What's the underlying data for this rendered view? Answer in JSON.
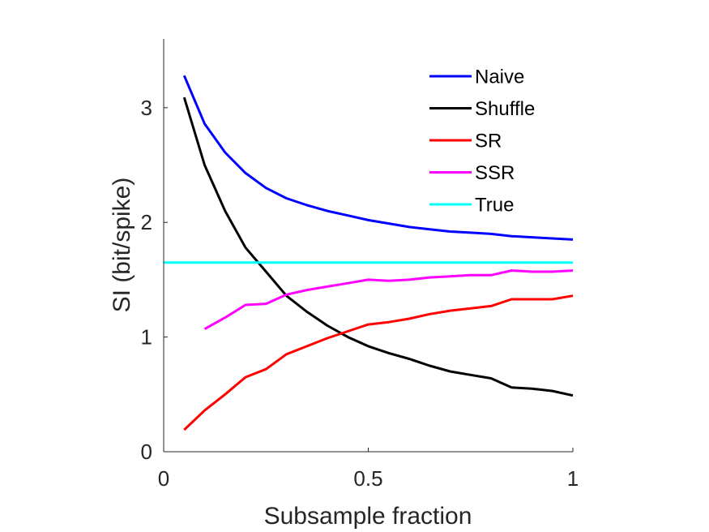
{
  "chart_data": {
    "type": "line",
    "xlabel": "Subsample fraction",
    "ylabel": "SI (bit/spike)",
    "xlim": [
      0,
      1
    ],
    "ylim": [
      0,
      3.6
    ],
    "xticks": [
      {
        "value": 0,
        "label": "0"
      },
      {
        "value": 0.5,
        "label": "0.5"
      },
      {
        "value": 1,
        "label": "1"
      }
    ],
    "yticks": [
      {
        "value": 0,
        "label": "0"
      },
      {
        "value": 1,
        "label": "1"
      },
      {
        "value": 2,
        "label": "2"
      },
      {
        "value": 3,
        "label": "3"
      }
    ],
    "grid": false,
    "legend_position": "top-right",
    "series": [
      {
        "name": "Naive",
        "color": "#0000ff",
        "x": [
          0.05,
          0.1,
          0.15,
          0.2,
          0.25,
          0.3,
          0.35,
          0.4,
          0.45,
          0.5,
          0.55,
          0.6,
          0.65,
          0.7,
          0.75,
          0.8,
          0.85,
          0.9,
          0.95,
          1.0
        ],
        "y": [
          3.28,
          2.86,
          2.61,
          2.43,
          2.3,
          2.21,
          2.15,
          2.1,
          2.06,
          2.02,
          1.99,
          1.96,
          1.94,
          1.92,
          1.91,
          1.9,
          1.88,
          1.87,
          1.86,
          1.85
        ]
      },
      {
        "name": "Shuffle",
        "color": "#000000",
        "x": [
          0.05,
          0.1,
          0.15,
          0.2,
          0.25,
          0.3,
          0.35,
          0.4,
          0.45,
          0.5,
          0.55,
          0.6,
          0.65,
          0.7,
          0.75,
          0.8,
          0.85,
          0.9,
          0.95,
          1.0
        ],
        "y": [
          3.09,
          2.5,
          2.1,
          1.78,
          1.57,
          1.36,
          1.22,
          1.1,
          1.0,
          0.92,
          0.86,
          0.81,
          0.75,
          0.7,
          0.67,
          0.64,
          0.56,
          0.55,
          0.53,
          0.49
        ]
      },
      {
        "name": "SR",
        "color": "#ff0000",
        "x": [
          0.05,
          0.1,
          0.15,
          0.2,
          0.25,
          0.3,
          0.35,
          0.4,
          0.45,
          0.5,
          0.55,
          0.6,
          0.65,
          0.7,
          0.75,
          0.8,
          0.85,
          0.9,
          0.95,
          1.0
        ],
        "y": [
          0.19,
          0.36,
          0.5,
          0.65,
          0.72,
          0.85,
          0.92,
          0.99,
          1.05,
          1.11,
          1.13,
          1.16,
          1.2,
          1.23,
          1.25,
          1.27,
          1.33,
          1.33,
          1.33,
          1.36
        ]
      },
      {
        "name": "SSR",
        "color": "#ff00ff",
        "x": [
          0.1,
          0.15,
          0.2,
          0.25,
          0.3,
          0.35,
          0.4,
          0.45,
          0.5,
          0.55,
          0.6,
          0.65,
          0.7,
          0.75,
          0.8,
          0.85,
          0.9,
          0.95,
          1.0
        ],
        "y": [
          1.07,
          1.17,
          1.28,
          1.29,
          1.37,
          1.41,
          1.44,
          1.47,
          1.5,
          1.49,
          1.5,
          1.52,
          1.53,
          1.54,
          1.54,
          1.58,
          1.57,
          1.57,
          1.58
        ]
      },
      {
        "name": "True",
        "color": "#00ffff",
        "x": [
          0,
          1
        ],
        "y": [
          1.65,
          1.65
        ]
      }
    ]
  }
}
